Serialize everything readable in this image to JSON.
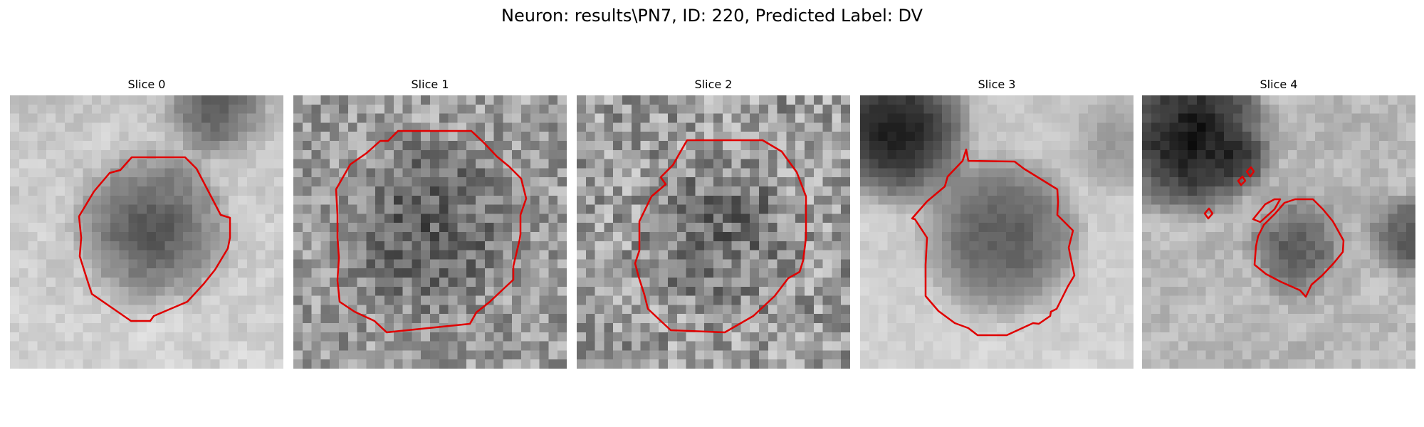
{
  "figure": {
    "title": "Neuron: results\\PN7, ID: 220, Predicted Label: DV"
  },
  "panels": [
    {
      "title": "Slice 0"
    },
    {
      "title": "Slice 1"
    },
    {
      "title": "Slice 2"
    },
    {
      "title": "Slice 3"
    },
    {
      "title": "Slice 4"
    }
  ],
  "colors": {
    "contour": "#e00000",
    "background": "#ffffff"
  }
}
